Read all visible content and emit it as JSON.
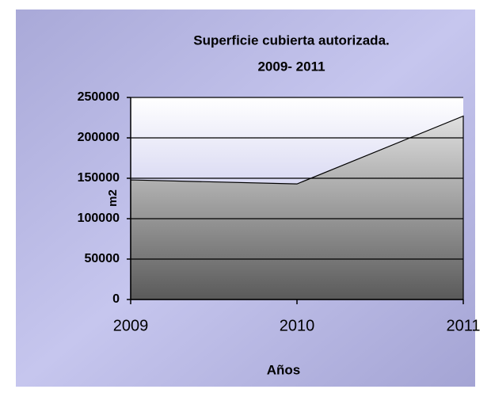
{
  "chart_data": {
    "type": "area",
    "title": [
      "Superficie cubierta autorizada.",
      "2009- 2011"
    ],
    "x_label": "Años",
    "y_label": "m2",
    "categories": [
      "2009",
      "2010",
      "2011"
    ],
    "values": [
      148000,
      143000,
      227000
    ],
    "color": "#a0a0a0",
    "ylim": [
      0,
      250000
    ],
    "yticks": [
      0,
      50000,
      100000,
      150000,
      200000,
      250000
    ],
    "grid": true
  }
}
